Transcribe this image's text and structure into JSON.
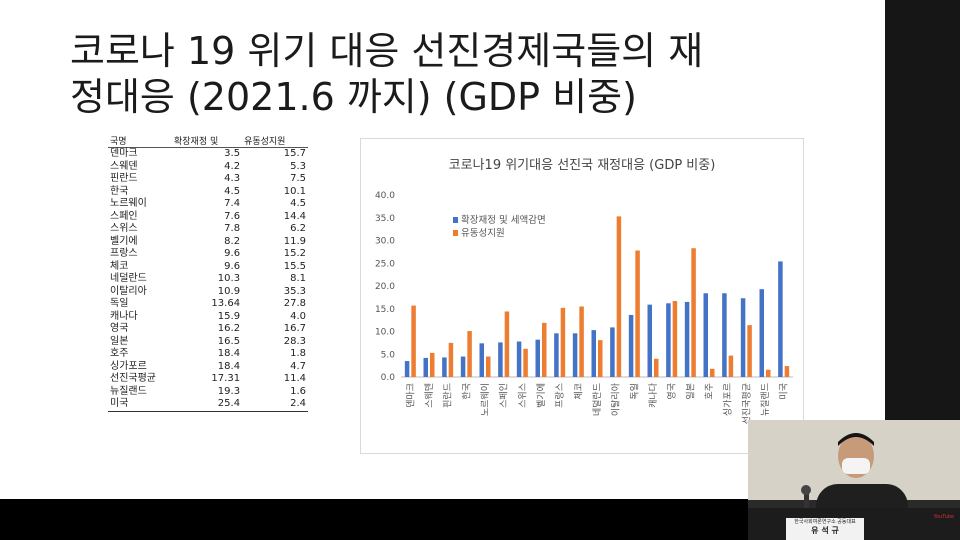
{
  "slide": {
    "title_line1": "코로나 19 위기 대응 선진경제국들의 재",
    "title_line2": "정대응 (2021.6 까지) (GDP 비중)"
  },
  "table": {
    "headers": [
      "국명",
      "확장재정 및",
      "유동성지원"
    ],
    "rows": [
      [
        "덴마크",
        "3.5",
        "15.7"
      ],
      [
        "스웨덴",
        "4.2",
        "5.3"
      ],
      [
        "핀란드",
        "4.3",
        "7.5"
      ],
      [
        "한국",
        "4.5",
        "10.1"
      ],
      [
        "노르웨이",
        "7.4",
        "4.5"
      ],
      [
        "스페인",
        "7.6",
        "14.4"
      ],
      [
        "스위스",
        "7.8",
        "6.2"
      ],
      [
        "벨기에",
        "8.2",
        "11.9"
      ],
      [
        "프랑스",
        "9.6",
        "15.2"
      ],
      [
        "체코",
        "9.6",
        "15.5"
      ],
      [
        "네덜란드",
        "10.3",
        "8.1"
      ],
      [
        "이탈리아",
        "10.9",
        "35.3"
      ],
      [
        "독일",
        "13.64",
        "27.8"
      ],
      [
        "캐나다",
        "15.9",
        "4.0"
      ],
      [
        "영국",
        "16.2",
        "16.7"
      ],
      [
        "일본",
        "16.5",
        "28.3"
      ],
      [
        "호주",
        "18.4",
        "1.8"
      ],
      [
        "싱가포르",
        "18.4",
        "4.7"
      ],
      [
        "선진국평균",
        "17.31",
        "11.4"
      ],
      [
        "뉴질랜드",
        "19.3",
        "1.6"
      ],
      [
        "미국",
        "25.4",
        "2.4"
      ]
    ]
  },
  "video": {
    "name": "유 석 규",
    "org": "한국사회여론연구소 공동대표",
    "logo": "YouTube"
  },
  "chart_data": {
    "type": "bar",
    "title": "코로나19 위기대응 선진국 재정대응 (GDP 비중)",
    "categories": [
      "덴마크",
      "스웨덴",
      "핀란드",
      "한국",
      "노르웨이",
      "스페인",
      "스위스",
      "벨기에",
      "프랑스",
      "체코",
      "네덜란드",
      "이탈리아",
      "독일",
      "캐나다",
      "영국",
      "일본",
      "호주",
      "싱가포르",
      "선진국평균",
      "뉴질랜드",
      "미국"
    ],
    "series": [
      {
        "name": "확장재정 및 세액감면",
        "color": "#4472C4",
        "values": [
          3.5,
          4.2,
          4.3,
          4.5,
          7.4,
          7.6,
          7.8,
          8.2,
          9.6,
          9.6,
          10.3,
          10.9,
          13.64,
          15.9,
          16.2,
          16.5,
          18.4,
          18.4,
          17.31,
          19.3,
          25.4
        ]
      },
      {
        "name": "유동성지원",
        "color": "#ED7D31",
        "values": [
          15.7,
          5.3,
          7.5,
          10.1,
          4.5,
          14.4,
          6.2,
          11.9,
          15.2,
          15.5,
          8.1,
          35.3,
          27.8,
          4.0,
          16.7,
          28.3,
          1.8,
          4.7,
          11.4,
          1.6,
          2.4
        ]
      }
    ],
    "ylim": [
      0,
      40
    ],
    "yticks": [
      "0.0",
      "5.0",
      "10.0",
      "15.0",
      "20.0",
      "25.0",
      "30.0",
      "35.0",
      "40.0"
    ],
    "grid": false,
    "legend": "top-left"
  }
}
